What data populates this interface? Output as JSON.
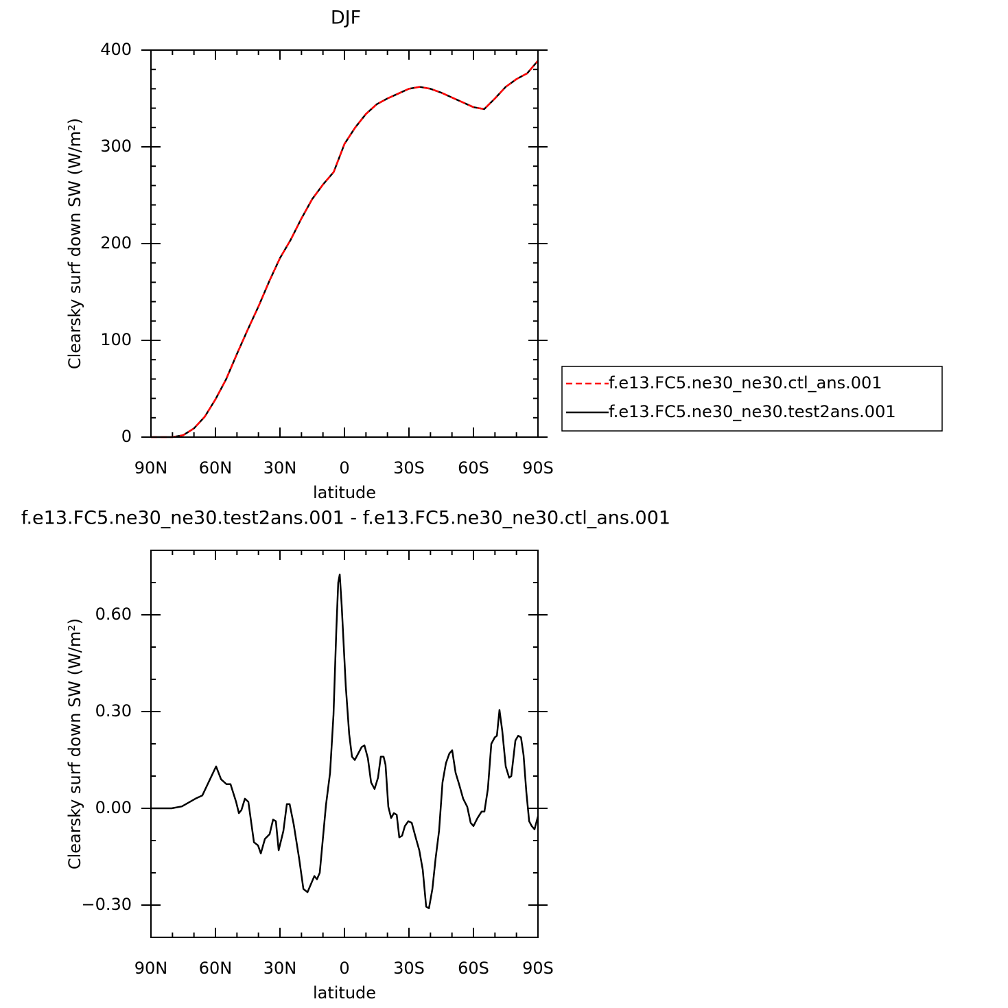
{
  "chart_data": [
    {
      "type": "line",
      "title": "DJF",
      "xlabel": "latitude",
      "ylabel": "Clearsky surf down SW (W/m²)",
      "x": [
        90,
        85,
        80,
        75,
        70,
        65,
        60,
        55,
        50,
        45,
        40,
        35,
        30,
        25,
        20,
        15,
        10,
        5,
        0,
        -5,
        -10,
        -15,
        -20,
        -25,
        -30,
        -35,
        -40,
        -45,
        -50,
        -55,
        -60,
        -65,
        -70,
        -75,
        -80,
        -85,
        -90
      ],
      "series": [
        {
          "name": "f.e13.FC5.ne30_ne30.ctl_ans.001",
          "color": "#ff0000",
          "linestyle": "dashed",
          "values": [
            0,
            0,
            0,
            2,
            9,
            21,
            39,
            60,
            86,
            111,
            135,
            161,
            185,
            204,
            226,
            246,
            261,
            274,
            303,
            320,
            334,
            344,
            350,
            355,
            360,
            362,
            360,
            356,
            351,
            346,
            341,
            339,
            350,
            362,
            370,
            376,
            389
          ]
        },
        {
          "name": "f.e13.FC5.ne30_ne30.test2ans.001",
          "color": "#000000",
          "linestyle": "solid",
          "values": [
            0,
            0,
            0,
            2,
            9,
            21,
            39,
            60,
            86,
            111,
            135,
            161,
            185,
            204,
            226,
            246,
            261,
            274,
            303,
            320,
            334,
            344,
            350,
            355,
            360,
            362,
            360,
            356,
            351,
            346,
            341,
            339,
            350,
            362,
            370,
            376,
            389
          ]
        }
      ],
      "xlim": [
        90,
        -90
      ],
      "xticks": [
        {
          "value": 90,
          "label": "90N"
        },
        {
          "value": 60,
          "label": "60N"
        },
        {
          "value": 30,
          "label": "30N"
        },
        0,
        {
          "value": -30,
          "label": "30S"
        },
        {
          "value": -60,
          "label": "60S"
        },
        {
          "value": -90,
          "label": "90S"
        }
      ],
      "xminorticks": [
        80,
        70,
        50,
        40,
        20,
        10,
        -10,
        -20,
        -40,
        -50,
        -70,
        -80
      ],
      "ylim": [
        0,
        400
      ],
      "yticks": [
        0,
        100,
        200,
        300,
        400
      ],
      "yminorticks": [
        20,
        40,
        60,
        80,
        120,
        140,
        160,
        180,
        220,
        240,
        260,
        280,
        320,
        340,
        360,
        380
      ],
      "legend": "right"
    },
    {
      "type": "line",
      "title": "f.e13.FC5.ne30_ne30.test2ans.001 - f.e13.FC5.ne30_ne30.ctl_ans.001",
      "xlabel": "latitude",
      "ylabel": "Clearsky surf down SW (W/m²)",
      "x": [
        90,
        80.4,
        75.6,
        69.3,
        66.1,
        62.9,
        59.7,
        57.4,
        54.9,
        53.0,
        50.4,
        49.1,
        47.9,
        46.3,
        44.7,
        42.1,
        40.2,
        38.9,
        37.0,
        34.8,
        33.2,
        31.9,
        30.6,
        28.4,
        26.8,
        25.5,
        23.6,
        21.1,
        19.1,
        17.2,
        15.9,
        14.0,
        12.8,
        11.5,
        8.6,
        6.7,
        5.1,
        3.8,
        2.9,
        2.2,
        1.3,
        -0.6,
        -2.2,
        -3.5,
        -4.8,
        -6.4,
        -8.0,
        -9.3,
        -10.9,
        -12.4,
        -14.0,
        -15.6,
        -16.9,
        -18.2,
        -19.1,
        -20.4,
        -21.7,
        -23.0,
        -24.3,
        -25.5,
        -26.8,
        -28.1,
        -29.7,
        -31.3,
        -32.9,
        -34.8,
        -36.4,
        -38.0,
        -39.3,
        -40.9,
        -42.4,
        -44.0,
        -45.6,
        -47.2,
        -48.8,
        -50.1,
        -51.7,
        -53.3,
        -55.2,
        -57.1,
        -58.7,
        -60.0,
        -61.9,
        -63.8,
        -65.1,
        -66.7,
        -68.3,
        -69.9,
        -70.9,
        -72.1,
        -73.4,
        -75.0,
        -76.6,
        -77.6,
        -79.5,
        -80.8,
        -82.1,
        -83.3,
        -84.6,
        -85.9,
        -87.1,
        -88.4,
        -90
      ],
      "values": [
        0,
        0,
        0.006,
        0.03,
        0.04,
        0.085,
        0.13,
        0.09,
        0.075,
        0.075,
        0.02,
        -0.015,
        -0.005,
        0.03,
        0.02,
        -0.105,
        -0.115,
        -0.14,
        -0.095,
        -0.08,
        -0.035,
        -0.04,
        -0.13,
        -0.07,
        0.013,
        0.013,
        -0.05,
        -0.155,
        -0.25,
        -0.26,
        -0.24,
        -0.21,
        -0.22,
        -0.2,
        0.01,
        0.11,
        0.29,
        0.55,
        0.7,
        0.725,
        0.63,
        0.38,
        0.23,
        0.16,
        0.15,
        0.17,
        0.19,
        0.195,
        0.155,
        0.08,
        0.06,
        0.095,
        0.16,
        0.16,
        0.135,
        0.005,
        -0.03,
        -0.015,
        -0.02,
        -0.09,
        -0.085,
        -0.055,
        -0.04,
        -0.045,
        -0.085,
        -0.13,
        -0.19,
        -0.305,
        -0.31,
        -0.25,
        -0.155,
        -0.07,
        0.08,
        0.14,
        0.17,
        0.18,
        0.11,
        0.075,
        0.03,
        0.005,
        -0.045,
        -0.055,
        -0.03,
        -0.01,
        -0.01,
        0.06,
        0.2,
        0.22,
        0.225,
        0.305,
        0.24,
        0.13,
        0.095,
        0.1,
        0.21,
        0.225,
        0.22,
        0.165,
        0.05,
        -0.04,
        -0.055,
        -0.065,
        -0.025
      ],
      "color": "#000000",
      "xlim": [
        90,
        -90
      ],
      "xticks": [
        {
          "value": 90,
          "label": "90N"
        },
        {
          "value": 60,
          "label": "60N"
        },
        {
          "value": 30,
          "label": "30N"
        },
        0,
        {
          "value": -30,
          "label": "30S"
        },
        {
          "value": -60,
          "label": "60S"
        },
        {
          "value": -90,
          "label": "90S"
        }
      ],
      "xminorticks": [
        80,
        70,
        50,
        40,
        20,
        10,
        -10,
        -20,
        -40,
        -50,
        -70,
        -80
      ],
      "ylim": [
        -0.4,
        0.8
      ],
      "yticks": [
        {
          "value": -0.3,
          "label": "−0.30"
        },
        {
          "value": 0,
          "label": "0.00"
        },
        {
          "value": 0.3,
          "label": "0.30"
        },
        {
          "value": 0.6,
          "label": "0.60"
        }
      ],
      "yminorticks": [
        -0.4,
        -0.2,
        -0.1,
        0.1,
        0.2,
        0.4,
        0.5,
        0.7,
        0.8
      ]
    }
  ]
}
